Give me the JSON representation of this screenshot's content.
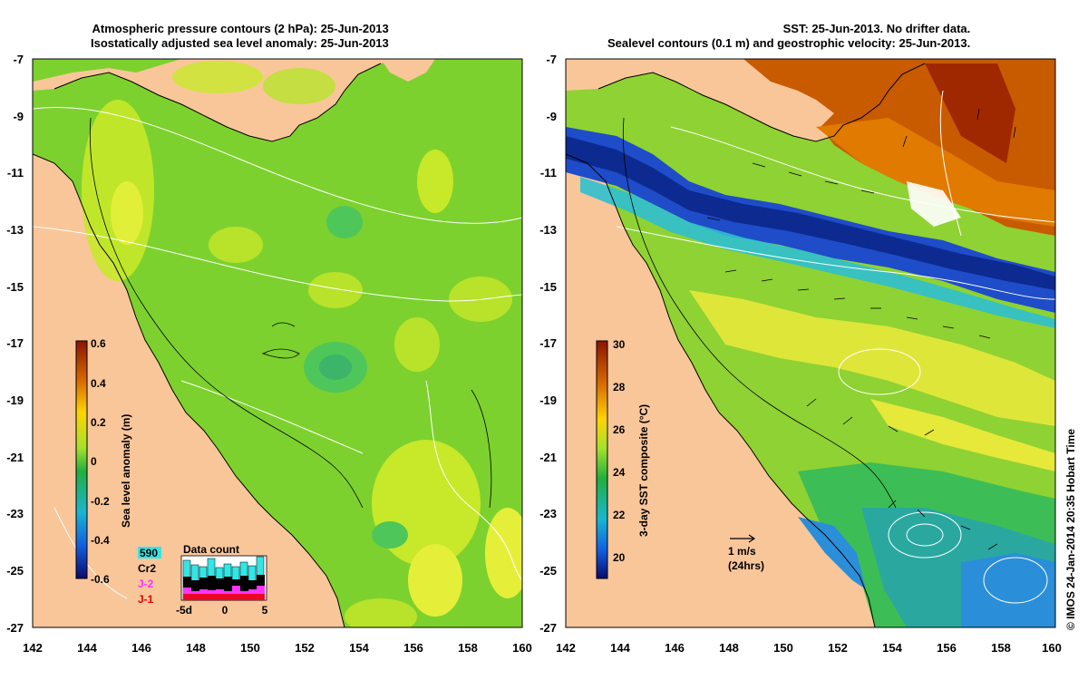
{
  "left_panel": {
    "title_line1": "Atmospheric pressure contours (2 hPa): 25-Jun-2013",
    "title_line2": "Isostatically adjusted sea level anomaly: 25-Jun-2013",
    "colorbar_label": "Sea level anomaly (m)",
    "colorbar_ticks": [
      "0.6",
      "0.4",
      "0.2",
      "0",
      "-0.2",
      "-0.4",
      "-0.6"
    ],
    "inset": {
      "title": "Data count",
      "legend": [
        {
          "label": "590",
          "color": "#33e6e6"
        },
        {
          "label": "Cr2",
          "color": "#000000"
        },
        {
          "label": "J-2",
          "color": "#ff33ff"
        },
        {
          "label": "J-1",
          "color": "#e60000"
        }
      ],
      "x_ticks": [
        "-5d",
        "0",
        "5"
      ]
    }
  },
  "right_panel": {
    "title_line1": "SST: 25-Jun-2013. No drifter data.",
    "title_line2": "Sealevel contours (0.1 m) and geostrophic velocity: 25-Jun-2013.",
    "colorbar_label": "3-day SST composite (°C)",
    "colorbar_ticks": [
      "30",
      "28",
      "26",
      "24",
      "22",
      "20"
    ],
    "scale_label_1": "1 m/s",
    "scale_label_2": "(24hrs)"
  },
  "axes": {
    "x_ticks": [
      "142",
      "144",
      "146",
      "148",
      "150",
      "152",
      "154",
      "156",
      "158",
      "160"
    ],
    "y_ticks": [
      "-7",
      "-9",
      "-11",
      "-13",
      "-15",
      "-17",
      "-19",
      "-21",
      "-23",
      "-25",
      "-27"
    ]
  },
  "credit": "© IMOS 24-Jan-2014 20:35 Hobart Time",
  "colors": {
    "land": "#f9c69a",
    "sla_ocean": "#7dd12e",
    "sst_ocean": "#8fd233"
  }
}
